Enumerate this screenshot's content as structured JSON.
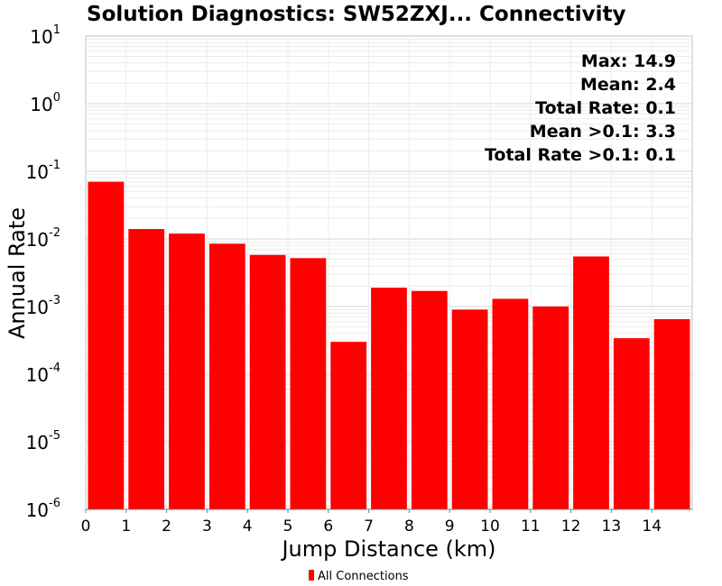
{
  "chart_data": {
    "type": "bar",
    "title": "Solution Diagnostics: SW52ZXJ... Connectivity",
    "xlabel": "Jump Distance (km)",
    "ylabel": "Annual Rate",
    "y_scale": "log",
    "ylim": [
      1e-06,
      10
    ],
    "xlim": [
      0,
      15
    ],
    "x_ticks": [
      "0",
      "1",
      "2",
      "3",
      "4",
      "5",
      "6",
      "7",
      "8",
      "9",
      "10",
      "11",
      "12",
      "13",
      "14"
    ],
    "y_ticks": [
      {
        "base": "10",
        "exp": "1"
      },
      {
        "base": "10",
        "exp": "0"
      },
      {
        "base": "10",
        "exp": "-1"
      },
      {
        "base": "10",
        "exp": "-2"
      },
      {
        "base": "10",
        "exp": "-3"
      },
      {
        "base": "10",
        "exp": "-4"
      },
      {
        "base": "10",
        "exp": "-5"
      },
      {
        "base": "10",
        "exp": "-6"
      }
    ],
    "grid": true,
    "legend_position": "bottom",
    "series": [
      {
        "name": "All Connections",
        "color": "#ff0000",
        "x": [
          0.5,
          1.5,
          2.5,
          3.5,
          4.5,
          5.5,
          6.5,
          7.5,
          8.5,
          9.5,
          10.5,
          11.5,
          12.5,
          13.5,
          14.5
        ],
        "values": [
          0.07,
          0.014,
          0.012,
          0.0085,
          0.0058,
          0.0052,
          0.0003,
          0.0019,
          0.0017,
          0.0009,
          0.0013,
          0.001,
          0.0055,
          0.00034,
          0.00065
        ]
      }
    ],
    "annotations": [
      "Max: 14.9",
      "Mean: 2.4",
      "Total Rate: 0.1",
      "Mean >0.1: 3.3",
      "Total Rate >0.1: 0.1"
    ]
  }
}
